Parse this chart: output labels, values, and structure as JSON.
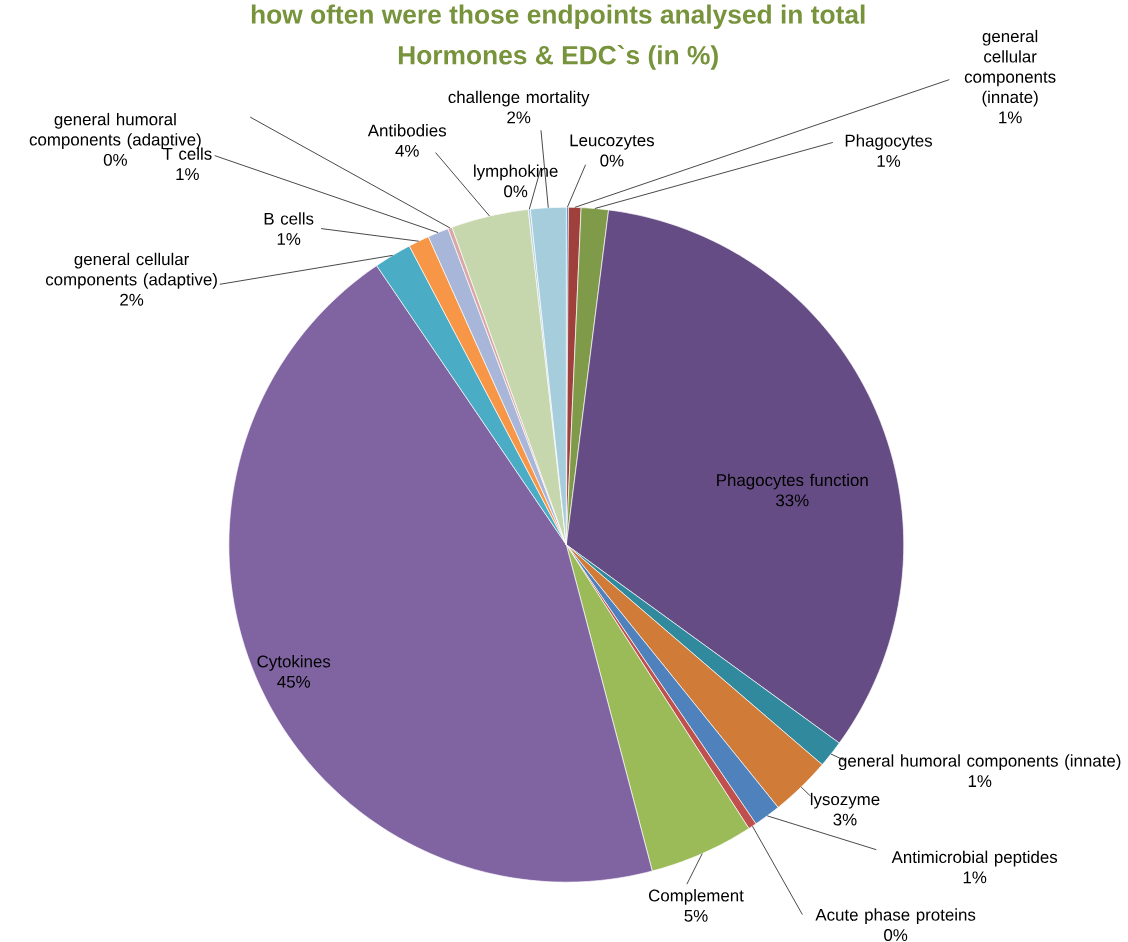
{
  "chart_data": {
    "type": "pie",
    "title": "how often were those endpoints analysed in total",
    "subtitle": "Hormones & EDC`s (in %)",
    "categories": [
      "Leucozytes",
      "general cellular components (innate)",
      "Phagocytes",
      "Phagocytes function",
      "general humoral components (innate)",
      "lysozyme",
      "Antimicrobial peptides",
      "Acute phase proteins",
      "Complement",
      "Cytokines",
      "general cellular components (adaptive)",
      "B cells",
      "T cells",
      "general humoral components (adaptive)",
      "Antibodies",
      "lymphokine",
      "challenge mortality"
    ],
    "values": [
      0.1,
      0.6,
      1.3,
      33.0,
      1.3,
      2.9,
      1.3,
      0.4,
      5.0,
      44.6,
      1.8,
      1.0,
      1.0,
      0.2,
      3.7,
      0.1,
      1.7
    ],
    "value_labels": [
      "0%",
      "1%",
      "1%",
      "33%",
      "1%",
      "3%",
      "1%",
      "0%",
      "5%",
      "45%",
      "2%",
      "1%",
      "1%",
      "0%",
      "4%",
      "0%",
      "2%"
    ],
    "colors": [
      "#4f81bd",
      "#a0403c",
      "#7f9a48",
      "#664c84",
      "#31899e",
      "#d07c38",
      "#4f81bd",
      "#c0504d",
      "#9bbb59",
      "#8064a2",
      "#4bacc6",
      "#f79646",
      "#a7b6d9",
      "#d9a7a6",
      "#c6d6ad",
      "#aecbe0",
      "#a5cddb"
    ]
  }
}
